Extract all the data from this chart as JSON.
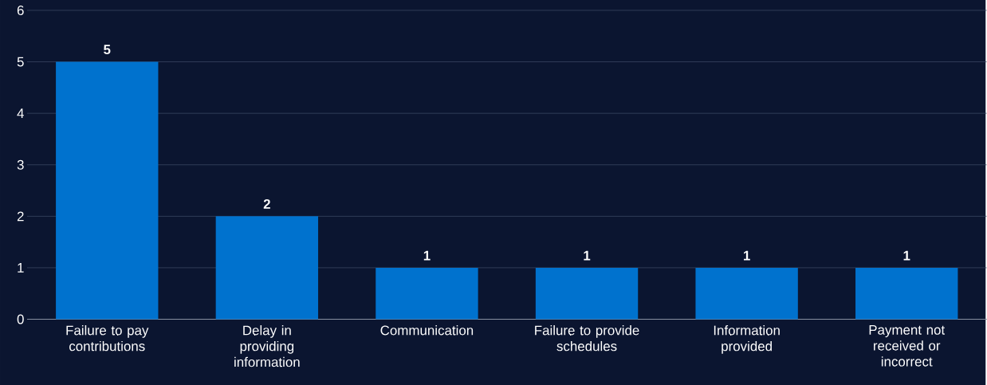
{
  "chart_data": {
    "type": "bar",
    "categories": [
      "Failure to pay contributions",
      "Delay in providing information",
      "Communication",
      "Failure to provide schedules",
      "Information provided",
      "Payment not received or incorrect"
    ],
    "values": [
      5,
      2,
      1,
      1,
      1,
      1
    ],
    "color": "#0072ce",
    "ylim": [
      0,
      6
    ],
    "yticks": [
      0,
      1,
      2,
      3,
      4,
      5,
      6
    ],
    "grid": "y",
    "data_labels": true
  }
}
